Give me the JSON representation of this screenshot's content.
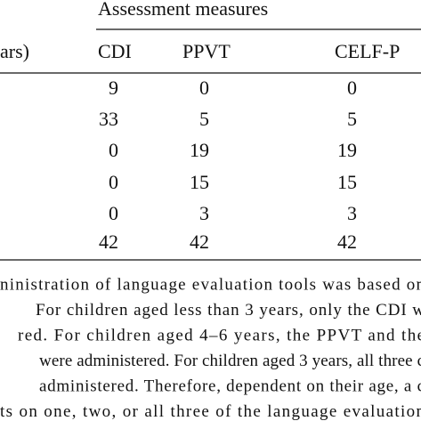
{
  "table": {
    "group_header": "Assessment measures",
    "headers": [
      "ars)",
      "CDI",
      "PPVT",
      "CELF-P"
    ],
    "rows": [
      [
        9,
        0,
        0
      ],
      [
        33,
        5,
        5
      ],
      [
        0,
        19,
        19
      ],
      [
        0,
        15,
        15
      ],
      [
        0,
        3,
        3
      ],
      [
        42,
        42,
        42
      ]
    ]
  },
  "footnote": [
    "ninistration of language evaluation tools was based on",
    "For children aged less than 3 years, only the CDI w",
    "red. For children aged 4–6 years, the PPVT and the",
    "were administered. For children aged 3 years, all three c",
    "administered. Therefore, dependent on their age, a c",
    "ts on one, two, or all three of the language evaluation"
  ]
}
